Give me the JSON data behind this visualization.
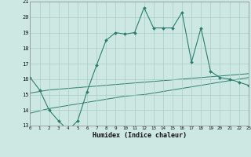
{
  "xlabel": "Humidex (Indice chaleur)",
  "x": [
    0,
    1,
    2,
    3,
    4,
    5,
    6,
    7,
    8,
    9,
    10,
    11,
    12,
    13,
    14,
    15,
    16,
    17,
    18,
    19,
    20,
    21,
    22,
    23
  ],
  "main_line": [
    16.1,
    15.3,
    14.0,
    13.3,
    12.7,
    13.3,
    15.2,
    16.9,
    18.5,
    19.0,
    18.9,
    19.0,
    20.6,
    19.3,
    19.3,
    19.3,
    20.3,
    17.1,
    19.3,
    16.5,
    16.1,
    16.0,
    15.8,
    15.6
  ],
  "reg_line1": [
    15.1,
    15.2,
    15.3,
    15.35,
    15.4,
    15.45,
    15.5,
    15.55,
    15.6,
    15.65,
    15.7,
    15.75,
    15.8,
    15.85,
    15.9,
    15.95,
    16.0,
    16.05,
    16.1,
    16.15,
    16.2,
    16.25,
    16.3,
    16.35
  ],
  "reg_line2": [
    13.8,
    13.95,
    14.1,
    14.2,
    14.3,
    14.4,
    14.5,
    14.6,
    14.7,
    14.8,
    14.9,
    14.95,
    15.0,
    15.1,
    15.2,
    15.3,
    15.4,
    15.5,
    15.6,
    15.7,
    15.8,
    15.9,
    16.0,
    16.1
  ],
  "line_color": "#2d7d6f",
  "bg_color": "#cde8e3",
  "grid_color": "#a8cec8",
  "xlim": [
    0,
    23
  ],
  "ylim": [
    13,
    21
  ],
  "yticks": [
    13,
    14,
    15,
    16,
    17,
    18,
    19,
    20,
    21
  ],
  "xticks": [
    0,
    1,
    2,
    3,
    4,
    5,
    6,
    7,
    8,
    9,
    10,
    11,
    12,
    13,
    14,
    15,
    16,
    17,
    18,
    19,
    20,
    21,
    22,
    23
  ]
}
